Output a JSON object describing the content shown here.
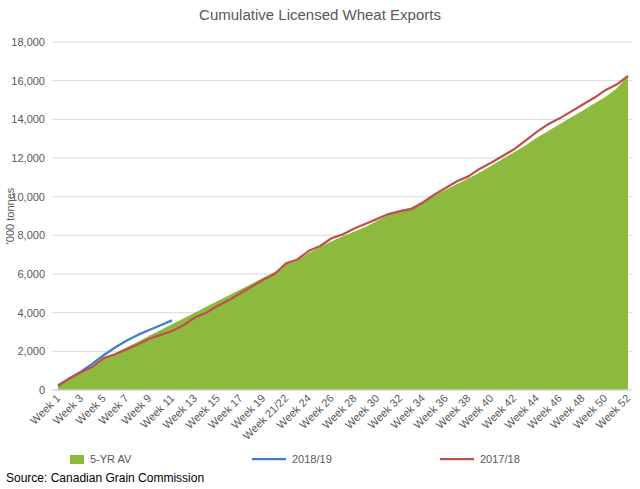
{
  "chart_data": {
    "type": "line",
    "title": "Cumulative Licensed Wheat Exports",
    "y_label": "'000 tonnes",
    "annotations": [
      "Source: Canadian Grain Commission"
    ],
    "categories": [
      "Week 1",
      null,
      "Week 3",
      null,
      "Week 5",
      null,
      "Week 7",
      null,
      "Week 9",
      null,
      "Week 11",
      null,
      "Week 13",
      null,
      "Week 15",
      null,
      "Week 17",
      null,
      "Week 19",
      null,
      "Week 21/22",
      null,
      "Week 24",
      null,
      "Week 26",
      null,
      "Week 28",
      null,
      "Week 30",
      null,
      "Week 32",
      null,
      "Week 34",
      null,
      "Week 36",
      null,
      "Week 38",
      null,
      "Week 40",
      null,
      "Week 42",
      null,
      "Week 44",
      null,
      "Week 46",
      null,
      "Week 48",
      null,
      "Week 50",
      null,
      "Week 52"
    ],
    "series": [
      {
        "name": "5-YR AV",
        "type": "area",
        "color": "#8db93e",
        "values": [
          250,
          600,
          900,
          1250,
          1600,
          1900,
          2200,
          2500,
          2800,
          3100,
          3400,
          3700,
          4000,
          4300,
          4600,
          4900,
          5200,
          5500,
          5800,
          6100,
          6500,
          6700,
          7100,
          7400,
          7700,
          7950,
          8200,
          8450,
          8750,
          9050,
          9300,
          9450,
          9750,
          10050,
          10350,
          10650,
          10950,
          11250,
          11600,
          11950,
          12300,
          12650,
          13050,
          13400,
          13750,
          14100,
          14450,
          14800,
          15150,
          15600,
          16250
        ]
      },
      {
        "name": "2018/19",
        "type": "line",
        "color": "#3f7ccf",
        "values": [
          250,
          600,
          950,
          1350,
          1800,
          2200,
          2550,
          2850,
          3100,
          3350,
          3600,
          null,
          null,
          null,
          null,
          null,
          null,
          null,
          null,
          null,
          null,
          null,
          null,
          null,
          null,
          null,
          null,
          null,
          null,
          null,
          null,
          null,
          null,
          null,
          null,
          null,
          null,
          null,
          null,
          null,
          null,
          null,
          null,
          null,
          null,
          null,
          null,
          null,
          null,
          null,
          null
        ]
      },
      {
        "name": "2017/18",
        "type": "line",
        "color": "#c0504d",
        "values": [
          200,
          600,
          900,
          1200,
          1650,
          1850,
          2100,
          2350,
          2650,
          2850,
          3050,
          3350,
          3750,
          4000,
          4350,
          4650,
          5000,
          5350,
          5700,
          6000,
          6550,
          6750,
          7200,
          7450,
          7850,
          8050,
          8350,
          8600,
          8850,
          9100,
          9250,
          9350,
          9700,
          10100,
          10450,
          10800,
          11050,
          11450,
          11750,
          12100,
          12450,
          12900,
          13350,
          13750,
          14050,
          14400,
          14750,
          15100,
          15500,
          15800,
          16250
        ]
      }
    ],
    "ylim": [
      0,
      18000
    ],
    "yticks": [
      0,
      {
        "value": 2000,
        "label": "2,000"
      },
      {
        "value": 4000,
        "label": "4,000"
      },
      {
        "value": 6000,
        "label": "6,000"
      },
      {
        "value": 8000,
        "label": "8,000"
      },
      {
        "value": 10000,
        "label": "10,000"
      },
      {
        "value": 12000,
        "label": "12,000"
      },
      {
        "value": 14000,
        "label": "14,000"
      },
      {
        "value": 16000,
        "label": "16,000"
      },
      {
        "value": 18000,
        "label": "18,000"
      }
    ],
    "grid": true,
    "legend": "bottom"
  }
}
